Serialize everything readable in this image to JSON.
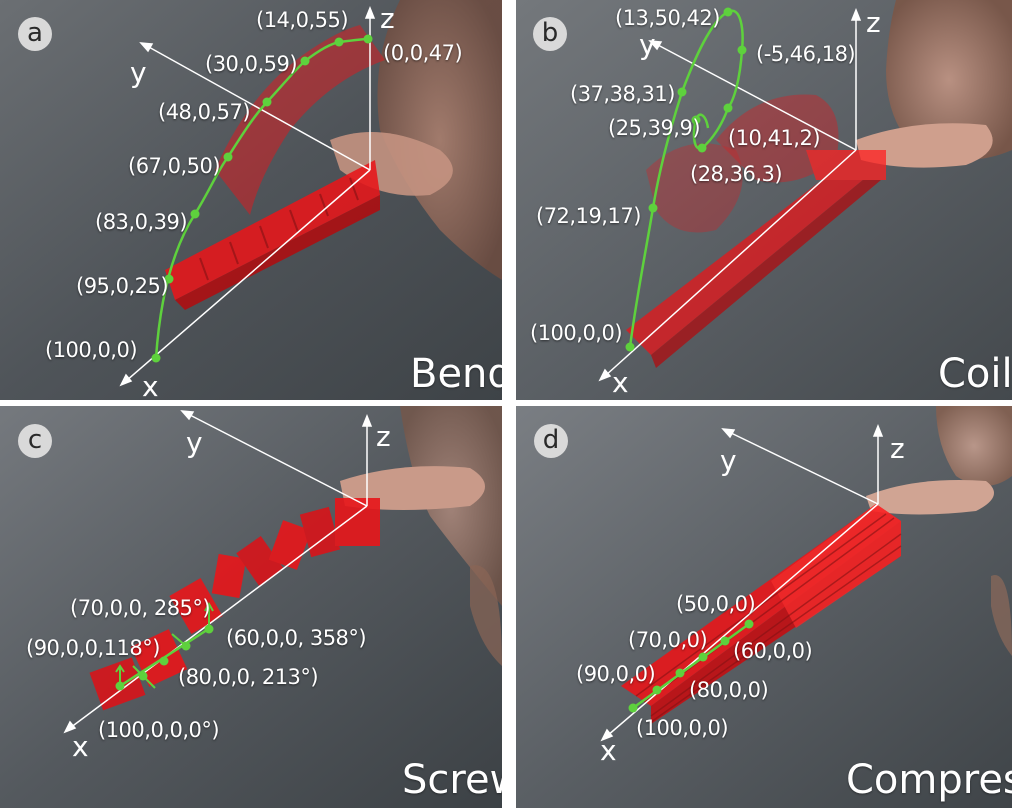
{
  "colors": {
    "curve": "#5ed13d",
    "robot": "#e8161a",
    "axis": "#ffffff"
  },
  "panels": [
    {
      "badge": "a",
      "title": "Bend",
      "axes": {
        "x": "x",
        "y": "y",
        "z": "z"
      },
      "points": [
        "(14,0,55)",
        "(0,0,47)",
        "(30,0,59)",
        "(48,0,57)",
        "(67,0,50)",
        "(83,0,39)",
        "(95,0,25)",
        "(100,0,0)"
      ]
    },
    {
      "badge": "b",
      "title": "Coil",
      "axes": {
        "x": "x",
        "y": "y",
        "z": "z"
      },
      "points": [
        "(13,50,42)",
        "(-5,46,18)",
        "(37,38,31)",
        "(25,39,9)",
        "(10,41,2)",
        "(28,36,3)",
        "(72,19,17)",
        "(100,0,0)"
      ]
    },
    {
      "badge": "c",
      "title": "Screw",
      "axes": {
        "x": "x",
        "y": "y",
        "z": "z"
      },
      "points": [
        "(70,0,0, 285°)",
        "(60,0,0, 358°)",
        "(90,0,0,118°)",
        "(80,0,0, 213°)",
        "(100,0,0,0°)"
      ]
    },
    {
      "badge": "d",
      "title": "Compress",
      "axes": {
        "x": "x",
        "y": "y",
        "z": "z"
      },
      "points": [
        "(50,0,0)",
        "(70,0,0)",
        "(60,0,0)",
        "(90,0,0)",
        "(80,0,0)",
        "(100,0,0)"
      ]
    }
  ]
}
